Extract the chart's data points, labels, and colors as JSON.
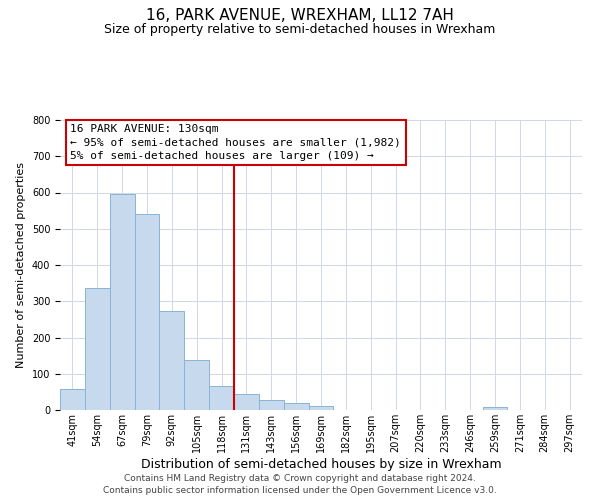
{
  "title": "16, PARK AVENUE, WREXHAM, LL12 7AH",
  "subtitle": "Size of property relative to semi-detached houses in Wrexham",
  "xlabel": "Distribution of semi-detached houses by size in Wrexham",
  "ylabel": "Number of semi-detached properties",
  "bin_labels": [
    "41sqm",
    "54sqm",
    "67sqm",
    "79sqm",
    "92sqm",
    "105sqm",
    "118sqm",
    "131sqm",
    "143sqm",
    "156sqm",
    "169sqm",
    "182sqm",
    "195sqm",
    "207sqm",
    "220sqm",
    "233sqm",
    "246sqm",
    "259sqm",
    "271sqm",
    "284sqm",
    "297sqm"
  ],
  "bar_heights": [
    57,
    337,
    595,
    542,
    274,
    137,
    67,
    45,
    28,
    20,
    12,
    0,
    0,
    0,
    0,
    0,
    0,
    8,
    0,
    0,
    0
  ],
  "bar_color": "#c6d9ed",
  "bar_edge_color": "#8ab4d4",
  "red_line_index": 7,
  "red_line_color": "#cc0000",
  "annotation_box_color": "#ffffff",
  "annotation_border_color": "#cc0000",
  "annotation_title": "16 PARK AVENUE: 130sqm",
  "annotation_line1": "← 95% of semi-detached houses are smaller (1,982)",
  "annotation_line2": "5% of semi-detached houses are larger (109) →",
  "ylim": [
    0,
    800
  ],
  "yticks": [
    0,
    100,
    200,
    300,
    400,
    500,
    600,
    700,
    800
  ],
  "footer_line1": "Contains HM Land Registry data © Crown copyright and database right 2024.",
  "footer_line2": "Contains public sector information licensed under the Open Government Licence v3.0.",
  "title_fontsize": 11,
  "subtitle_fontsize": 9,
  "xlabel_fontsize": 9,
  "ylabel_fontsize": 8,
  "tick_fontsize": 7,
  "annotation_fontsize": 8,
  "footer_fontsize": 6.5,
  "background_color": "#ffffff",
  "grid_color": "#d0d8e8"
}
